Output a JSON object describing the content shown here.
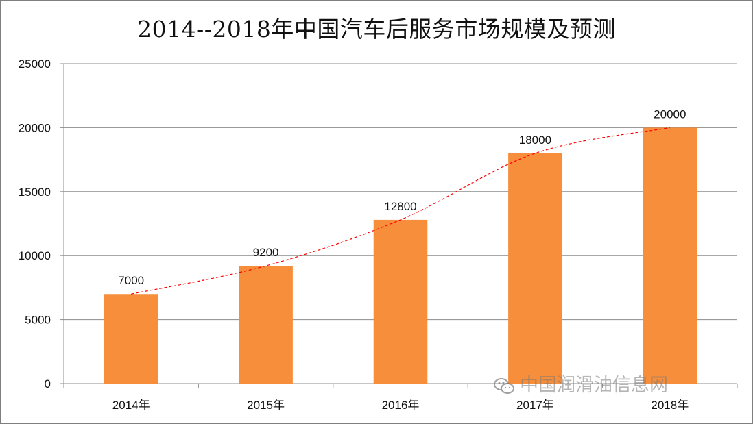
{
  "chart_data": {
    "type": "bar",
    "title": "2014--2018年中国汽车后服务市场规模及预测",
    "categories": [
      "2014年",
      "2015年",
      "2016年",
      "2017年",
      "2018年"
    ],
    "values": [
      7000,
      9200,
      12800,
      18000,
      20000
    ],
    "data_labels": [
      "7000",
      "9200",
      "12800",
      "18000",
      "20000"
    ],
    "ylim": [
      0,
      25000
    ],
    "yticks": [
      "0",
      "5000",
      "10000",
      "15000",
      "20000",
      "25000"
    ],
    "grid": true,
    "legend": "none",
    "trendline": {
      "style": "dashed",
      "color": "#ff0000",
      "type": "polynomial"
    },
    "bar_color": "#f68e3b"
  },
  "watermark": {
    "text": "中国润滑油信息网",
    "icon": "wechat-icon"
  }
}
